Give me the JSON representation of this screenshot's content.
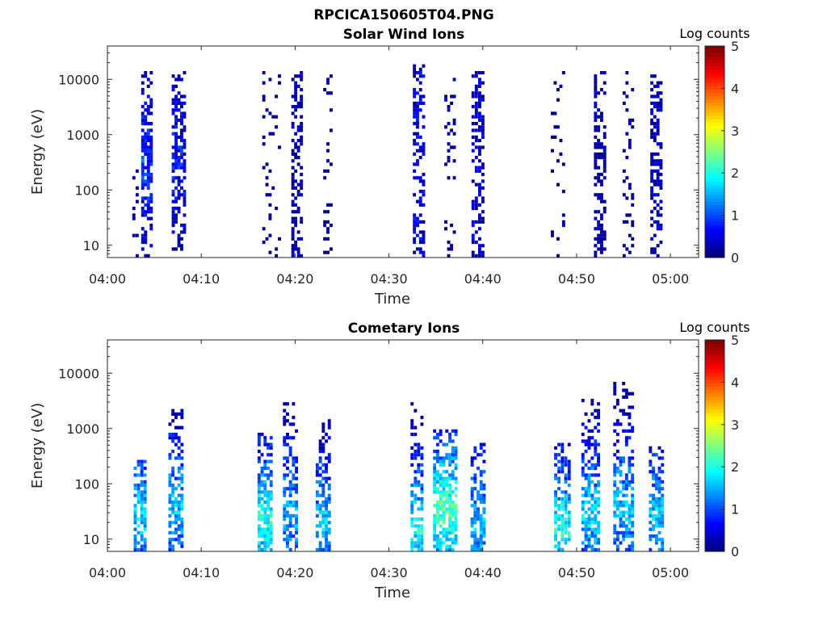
{
  "figure": {
    "title": "RPCICA150605T04.PNG"
  },
  "colors": {
    "axis": "#262626",
    "background": "#ffffff",
    "jet_start": "#00008f",
    "jet_end": "#800000"
  },
  "chart_data": [
    {
      "type": "heatmap",
      "id": "solar",
      "title": "Solar Wind Ions",
      "xlabel": "Time",
      "ylabel": "Energy (eV)",
      "x_range_min": [
        0,
        63
      ],
      "x_ticks": [
        "04:00",
        "04:10",
        "04:20",
        "04:30",
        "04:40",
        "04:50",
        "05:00"
      ],
      "y_scale": "log",
      "y_range": [
        6,
        40000
      ],
      "y_ticks": [
        "10",
        "100",
        "1000",
        "10000"
      ],
      "colorbar": {
        "label": "Log counts",
        "range": [
          0,
          5
        ],
        "ticks": [
          "0",
          "1",
          "2",
          "3",
          "4",
          "5"
        ]
      },
      "bursts": [
        {
          "t": 3.0,
          "w": 0.7,
          "emin": 6,
          "emax": 400,
          "density": 0.25,
          "lv": 0.2
        },
        {
          "t": 4.2,
          "w": 1.2,
          "emin": 6,
          "emax": 15000,
          "density": 0.55,
          "lv": 0.9,
          "peak_e": 300
        },
        {
          "t": 7.6,
          "w": 1.5,
          "emin": 6,
          "emax": 15000,
          "density": 0.5,
          "lv": 0.7,
          "peak_e": 400
        },
        {
          "t": 17.5,
          "w": 2.0,
          "emin": 300,
          "emax": 15000,
          "density": 0.1,
          "lv": 0.2
        },
        {
          "t": 20.2,
          "w": 1.2,
          "emin": 6,
          "emax": 15000,
          "density": 0.45,
          "lv": 0.4
        },
        {
          "t": 23.5,
          "w": 1.0,
          "emin": 300,
          "emax": 15000,
          "density": 0.15,
          "lv": 0.2
        },
        {
          "t": 33.2,
          "w": 1.3,
          "emin": 6,
          "emax": 20000,
          "density": 0.45,
          "lv": 0.8
        },
        {
          "t": 36.5,
          "w": 1.2,
          "emin": 300,
          "emax": 15000,
          "density": 0.15,
          "lv": 0.2
        },
        {
          "t": 39.5,
          "w": 1.4,
          "emin": 6,
          "emax": 15000,
          "density": 0.5,
          "lv": 0.6
        },
        {
          "t": 48.0,
          "w": 1.5,
          "emin": 200,
          "emax": 15000,
          "density": 0.1,
          "lv": 0.2
        },
        {
          "t": 52.5,
          "w": 1.3,
          "emin": 6,
          "emax": 15000,
          "density": 0.45,
          "lv": 0.4
        },
        {
          "t": 55.5,
          "w": 1.2,
          "emin": 300,
          "emax": 15000,
          "density": 0.15,
          "lv": 0.2
        },
        {
          "t": 58.5,
          "w": 1.3,
          "emin": 6,
          "emax": 15000,
          "density": 0.45,
          "lv": 0.5
        }
      ]
    },
    {
      "type": "heatmap",
      "id": "comet",
      "title": "Cometary Ions",
      "xlabel": "Time",
      "ylabel": "Energy (eV)",
      "x_range_min": [
        0,
        63
      ],
      "x_ticks": [
        "04:00",
        "04:10",
        "04:20",
        "04:30",
        "04:40",
        "04:50",
        "05:00"
      ],
      "y_scale": "log",
      "y_range": [
        6,
        40000
      ],
      "y_ticks": [
        "10",
        "100",
        "1000",
        "10000"
      ],
      "colorbar": {
        "label": "Log counts",
        "range": [
          0,
          5
        ],
        "ticks": [
          "0",
          "1",
          "2",
          "3",
          "4",
          "5"
        ]
      },
      "bursts": [
        {
          "t": 3.5,
          "w": 1.4,
          "emin": 6,
          "emax": 300,
          "density": 0.55,
          "lv": 1.7,
          "peak_e": 30
        },
        {
          "t": 7.3,
          "w": 1.6,
          "emin": 6,
          "emax": 2500,
          "density": 0.5,
          "lv": 1.6,
          "peak_e": 40
        },
        {
          "t": 16.8,
          "w": 1.6,
          "emin": 6,
          "emax": 900,
          "density": 0.6,
          "lv": 2.0,
          "peak_e": 25
        },
        {
          "t": 19.5,
          "w": 1.6,
          "emin": 6,
          "emax": 3500,
          "density": 0.45,
          "lv": 1.5,
          "peak_e": 30
        },
        {
          "t": 23.0,
          "w": 1.6,
          "emin": 6,
          "emax": 1500,
          "density": 0.5,
          "lv": 1.6,
          "peak_e": 20
        },
        {
          "t": 33.0,
          "w": 1.4,
          "emin": 6,
          "emax": 4500,
          "density": 0.45,
          "lv": 1.9,
          "peak_e": 15
        },
        {
          "t": 36.0,
          "w": 2.6,
          "emin": 6,
          "emax": 1000,
          "density": 0.6,
          "lv": 2.3,
          "peak_e": 40
        },
        {
          "t": 39.5,
          "w": 1.6,
          "emin": 6,
          "emax": 600,
          "density": 0.5,
          "lv": 1.6,
          "peak_e": 20
        },
        {
          "t": 48.5,
          "w": 1.8,
          "emin": 6,
          "emax": 600,
          "density": 0.55,
          "lv": 2.0,
          "peak_e": 15
        },
        {
          "t": 51.5,
          "w": 2.0,
          "emin": 6,
          "emax": 3500,
          "density": 0.5,
          "lv": 1.7,
          "peak_e": 30
        },
        {
          "t": 55.0,
          "w": 2.2,
          "emin": 6,
          "emax": 7000,
          "density": 0.5,
          "lv": 1.6,
          "peak_e": 40
        },
        {
          "t": 58.5,
          "w": 1.6,
          "emin": 6,
          "emax": 500,
          "density": 0.45,
          "lv": 1.6,
          "peak_e": 30
        }
      ]
    }
  ]
}
